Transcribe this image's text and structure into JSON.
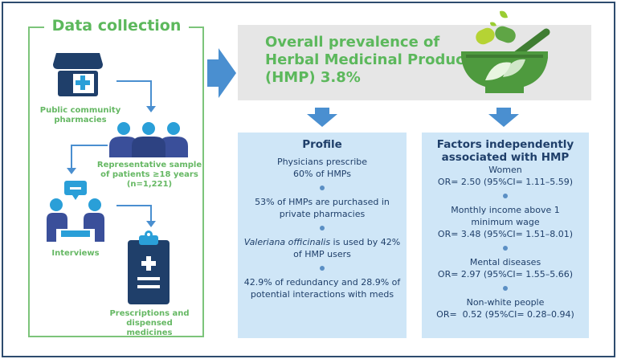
{
  "data_collection": {
    "title": "Data collection",
    "steps": [
      {
        "label": "Public community pharmacies",
        "icon": "pharmacy-store-icon"
      },
      {
        "label": "Representative sample of patients ≥18 years",
        "sub": "(n=1,221)",
        "icon": "patients-group-icon"
      },
      {
        "label": "Interviews",
        "icon": "interview-icon"
      },
      {
        "label": "Prescriptions and dispensed medicines",
        "icon": "clipboard-icon"
      }
    ]
  },
  "prevalence": {
    "text": "Overall prevalence of Herbal Medicinal Product (HMP) 3.8%"
  },
  "profile": {
    "title": "Profile",
    "items": [
      {
        "text": "Physicians prescribe 60% of HMPs"
      },
      {
        "text": "53% of HMPs are purchased in private pharmacies"
      },
      {
        "italic": "Valeriana officinalis",
        "text": " is used by 42% of HMP users"
      },
      {
        "text": "42.9% of redundancy and 28.9% of potential interactions with meds"
      }
    ]
  },
  "factors": {
    "title": "Factors independently associated with HMP",
    "items": [
      {
        "name": "Women",
        "or": "OR= 2.50 (95%CI= 1.11–5.59)"
      },
      {
        "name": "Monthly income above 1 minimum wage",
        "or": "OR= 3.48 (95%CI= 1.51–8.01)"
      },
      {
        "name": "Mental diseases",
        "or": "OR= 2.97 (95%CI= 1.55–5.66)"
      },
      {
        "name": "Non-white people",
        "or": "OR=  0.52 (95%CI= 0.28–0.94)"
      }
    ]
  },
  "colors": {
    "green": "#5cb85c",
    "navy": "#1f3f6a",
    "blue": "#4a8fd0",
    "panel": "#cfe6f7"
  }
}
